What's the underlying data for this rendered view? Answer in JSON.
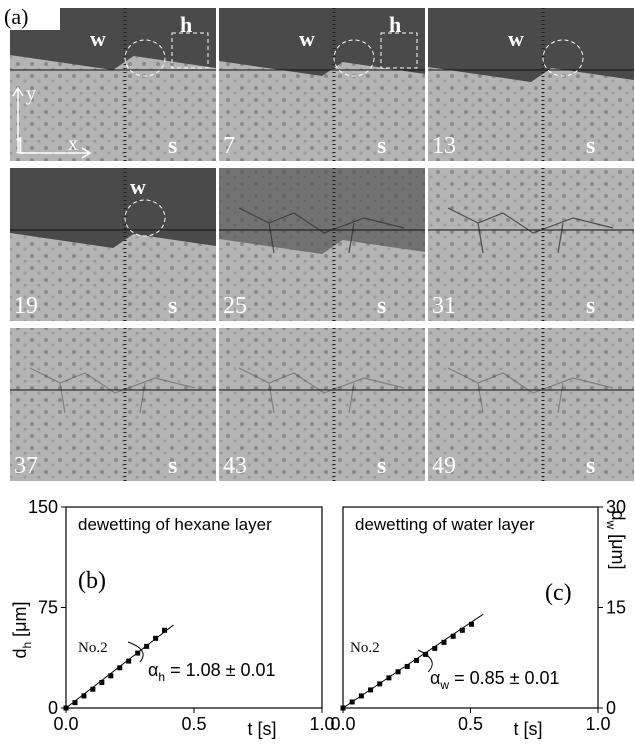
{
  "figure_label": "(a)",
  "axis_labels": {
    "x": "x",
    "y": "y"
  },
  "panels": [
    {
      "frame": "1",
      "w": "w",
      "h": "h",
      "s": "s"
    },
    {
      "frame": "7",
      "w": "w",
      "h": "h",
      "s": "s"
    },
    {
      "frame": "13",
      "w": "w",
      "s": "s"
    },
    {
      "frame": "19",
      "w": "w",
      "s": "s"
    },
    {
      "frame": "25",
      "s": "s"
    },
    {
      "frame": "31",
      "s": "s"
    },
    {
      "frame": "37",
      "s": "s"
    },
    {
      "frame": "43",
      "s": "s"
    },
    {
      "frame": "49",
      "s": "s"
    }
  ],
  "chart_data": [
    {
      "type": "scatter",
      "title": "dewetting of hexane layer",
      "panel_label": "(b)",
      "sample": "No.2",
      "fit_label": {
        "symbol": "α",
        "sub": "h",
        "text": " = 1.08 ± 0.01"
      },
      "ylabel": {
        "main": "d",
        "sub": "h",
        "unit": " [μm]"
      },
      "xlabel": "t [s]",
      "x": [
        0,
        0.035,
        0.07,
        0.105,
        0.14,
        0.175,
        0.21,
        0.245,
        0.28,
        0.315,
        0.35,
        0.385
      ],
      "series": [
        {
          "color": "#000000",
          "values": [
            0,
            4,
            9,
            14,
            19,
            24,
            30,
            35,
            41,
            46,
            52,
            58
          ]
        }
      ],
      "fit": {
        "x": [
          0,
          0.42
        ],
        "y": [
          0,
          62
        ]
      },
      "xlim": [
        0,
        1.0
      ],
      "xticks": [
        {
          "value": 0,
          "label": "0.0"
        },
        0.5,
        {
          "value": 1.0,
          "label": "1.0"
        }
      ],
      "ylim": [
        0,
        150
      ],
      "yticks": [
        0,
        75,
        150
      ]
    },
    {
      "type": "scatter",
      "title": "dewetting of water layer",
      "panel_label": "(c)",
      "sample": "No.2",
      "fit_label": {
        "symbol": "α",
        "sub": "w",
        "text": " = 0.85 ± 0.01"
      },
      "ylabel": {
        "main": "d",
        "sub": "w",
        "unit": " [μm]"
      },
      "xlabel": "t [s]",
      "x": [
        0,
        0.036,
        0.072,
        0.108,
        0.144,
        0.18,
        0.216,
        0.252,
        0.288,
        0.324,
        0.36,
        0.396,
        0.432,
        0.468,
        0.504
      ],
      "series": [
        {
          "color": "#000000",
          "axis": "y2",
          "values": [
            0,
            0.9,
            1.8,
            2.7,
            3.6,
            4.5,
            5.4,
            6.2,
            7.1,
            8.0,
            8.9,
            9.8,
            10.7,
            11.6,
            12.5
          ]
        }
      ],
      "fit": {
        "x": [
          0,
          0.55
        ],
        "y": [
          0,
          14
        ]
      },
      "xlim": [
        0,
        1.0
      ],
      "xticks": [
        {
          "value": 0,
          "label": "0.0"
        },
        0.5,
        {
          "value": 1.0,
          "label": "1.0"
        }
      ],
      "y2lim": [
        0,
        30
      ],
      "y2ticks": [
        0,
        15,
        30
      ]
    }
  ]
}
